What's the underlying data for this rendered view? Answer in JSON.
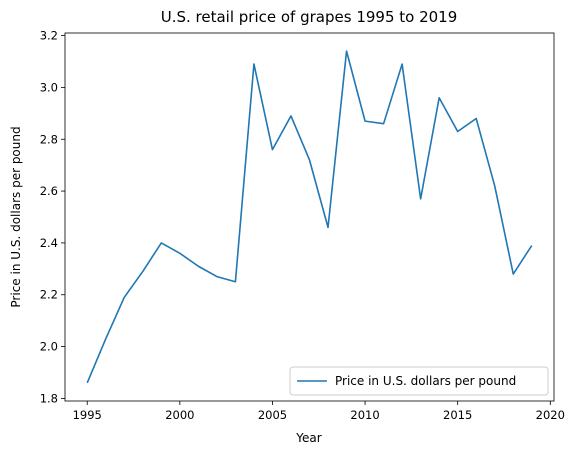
{
  "chart_data": {
    "type": "line",
    "title": "U.S. retail price of grapes 1995 to 2019",
    "xlabel": "Year",
    "ylabel": "Price in U.S. dollars per pound",
    "xlim": [
      1993.8,
      2020.2
    ],
    "ylim": [
      1.79,
      3.21
    ],
    "xticks": [
      1995,
      2000,
      2005,
      2010,
      2015,
      2020
    ],
    "yticks": [
      1.8,
      2.0,
      2.2,
      2.4,
      2.6,
      2.8,
      3.0,
      3.2
    ],
    "ytick_labels": [
      "1.8",
      "2.0",
      "2.2",
      "2.4",
      "2.6",
      "2.8",
      "3.0",
      "3.2"
    ],
    "grid": false,
    "legend_position": "lower-right",
    "color": "#1f77b4",
    "series": [
      {
        "name": "Price in U.S. dollars per pound",
        "x": [
          1995,
          1996,
          1997,
          1998,
          1999,
          2000,
          2001,
          2002,
          2003,
          2004,
          2005,
          2006,
          2007,
          2008,
          2009,
          2010,
          2011,
          2012,
          2013,
          2014,
          2015,
          2016,
          2017,
          2018,
          2019
        ],
        "values": [
          1.86,
          2.03,
          2.19,
          2.29,
          2.4,
          2.36,
          2.31,
          2.27,
          2.25,
          3.09,
          2.76,
          2.89,
          2.72,
          2.46,
          3.14,
          2.87,
          2.86,
          3.09,
          2.57,
          2.96,
          2.83,
          2.88,
          2.62,
          2.28,
          2.39
        ]
      }
    ]
  }
}
